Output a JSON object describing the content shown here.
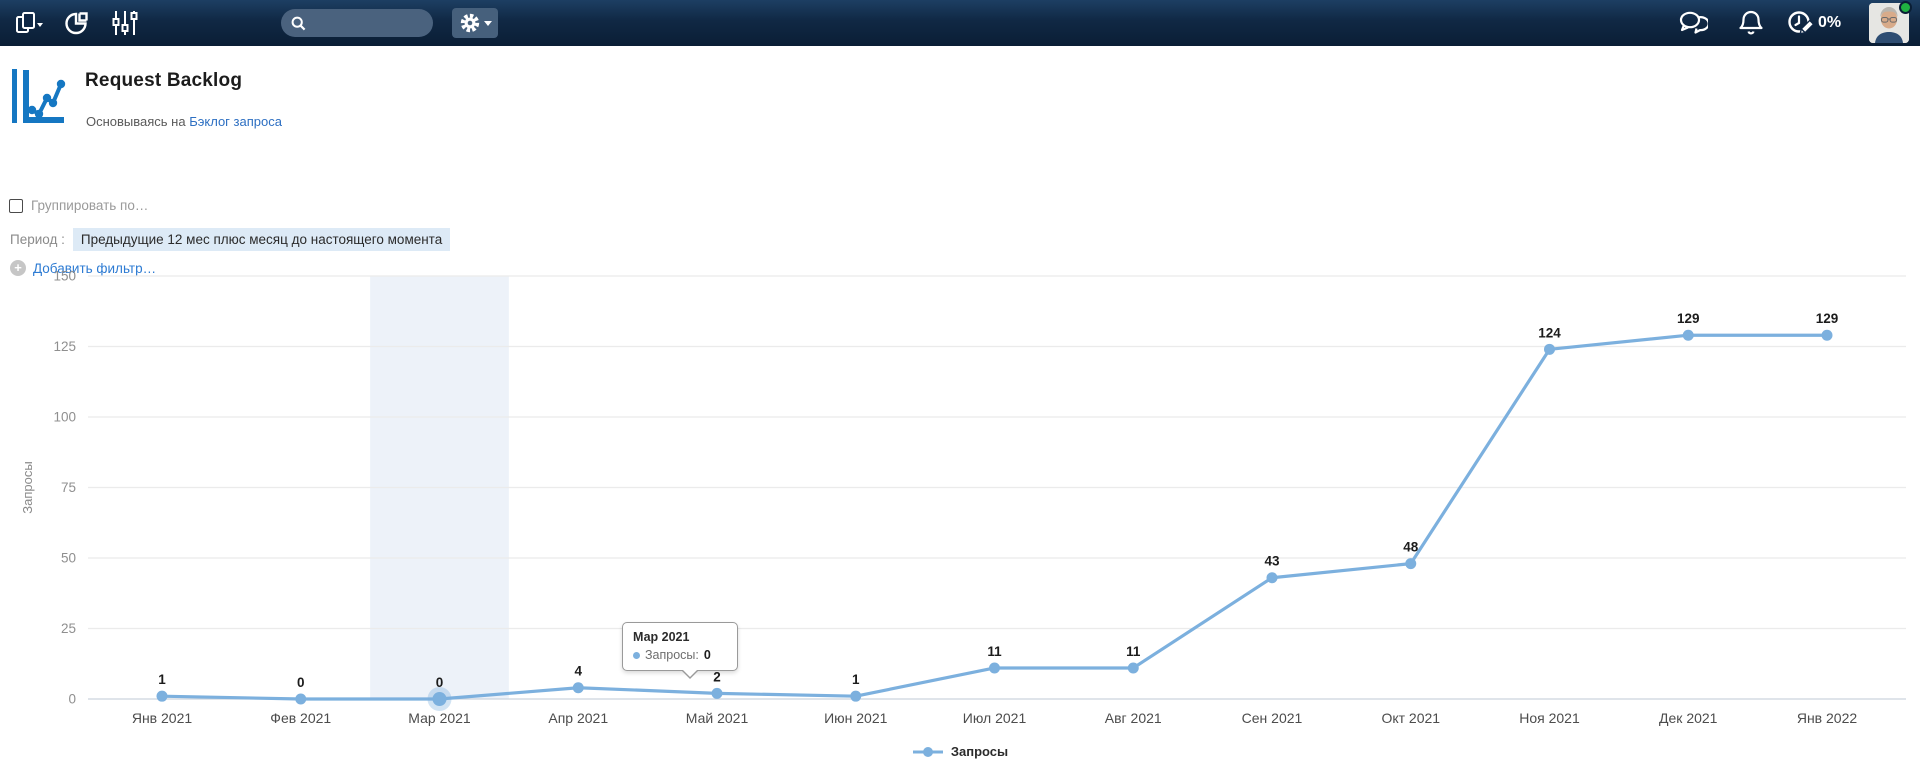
{
  "topbar": {
    "search_value": "",
    "usage_percent": "0%"
  },
  "header": {
    "title": "Request Backlog",
    "subtitle_prefix": "Основываясь на ",
    "subtitle_link": "Бэклог запроса"
  },
  "filters": {
    "group_by_label": "Группировать по…",
    "period_label": "Период :",
    "period_value": "Предыдущие 12 мес плюс месяц до настоящего момента",
    "add_filter_plus": "+",
    "add_filter_label": "Добавить фильтр…"
  },
  "chart_data": {
    "type": "line",
    "title": "Request Backlog",
    "ylabel": "Запросы",
    "xlabel": "",
    "categories": [
      "Янв 2021",
      "Фев 2021",
      "Мар 2021",
      "Апр 2021",
      "Май 2021",
      "Июн 2021",
      "Июл 2021",
      "Авг 2021",
      "Сен 2021",
      "Окт 2021",
      "Ноя 2021",
      "Дек 2021",
      "Янв 2022"
    ],
    "series": [
      {
        "name": "Запросы",
        "values": [
          1,
          0,
          0,
          4,
          2,
          1,
          11,
          11,
          43,
          48,
          124,
          129,
          129
        ]
      }
    ],
    "ylim": [
      0,
      150
    ],
    "yticks": [
      0,
      25,
      50,
      75,
      100,
      125,
      150
    ],
    "grid": true,
    "legend_position": "bottom",
    "highlight_index": 2,
    "line_color": "#7cb0de",
    "band_color": "#edf2f9",
    "grid_color": "#ebebeb",
    "zero_line_color": "#ccd4de"
  },
  "tooltip": {
    "month": "Мар 2021",
    "series_label": "Запросы:",
    "value": "0"
  },
  "legend": {
    "label": "Запросы"
  },
  "colors": {
    "accent_blue": "#1577c2",
    "link_blue": "#2d6fc2",
    "topbar_navy": "#102844",
    "chip_bg": "#ddeaf6",
    "presence_green": "#1fb141"
  }
}
